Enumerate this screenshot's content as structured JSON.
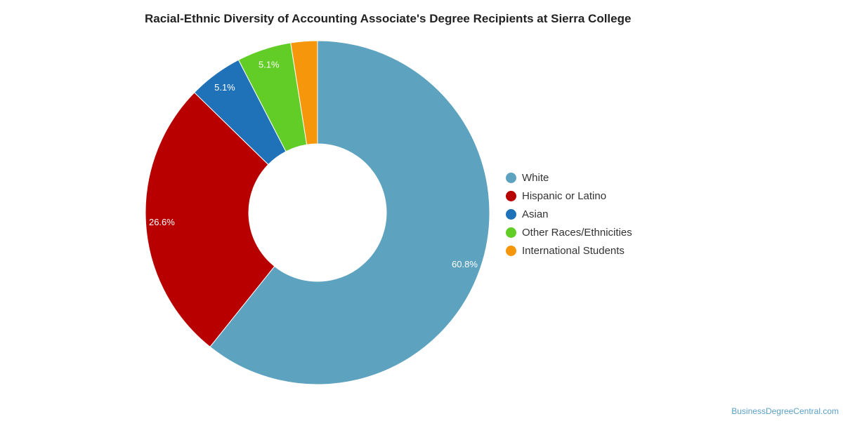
{
  "chart_data": {
    "type": "pie",
    "title": "Racial-Ethnic Diversity of Accounting Associate's Degree Recipients at Sierra College",
    "donut": true,
    "legend_position": "right",
    "slices": [
      {
        "label": "White",
        "value": 60.8,
        "display": "60.8%",
        "color": "#5da2bf"
      },
      {
        "label": "Hispanic or Latino",
        "value": 26.6,
        "display": "26.6%",
        "color": "#b90000"
      },
      {
        "label": "Asian",
        "value": 5.1,
        "display": "5.1%",
        "color": "#1f72b8"
      },
      {
        "label": "Other Races/Ethnicities",
        "value": 5.1,
        "display": "5.1%",
        "color": "#62cd27"
      },
      {
        "label": "International Students",
        "value": 2.5,
        "display": "",
        "color": "#f6960a"
      }
    ]
  },
  "watermark": "BusinessDegreeCentral.com"
}
